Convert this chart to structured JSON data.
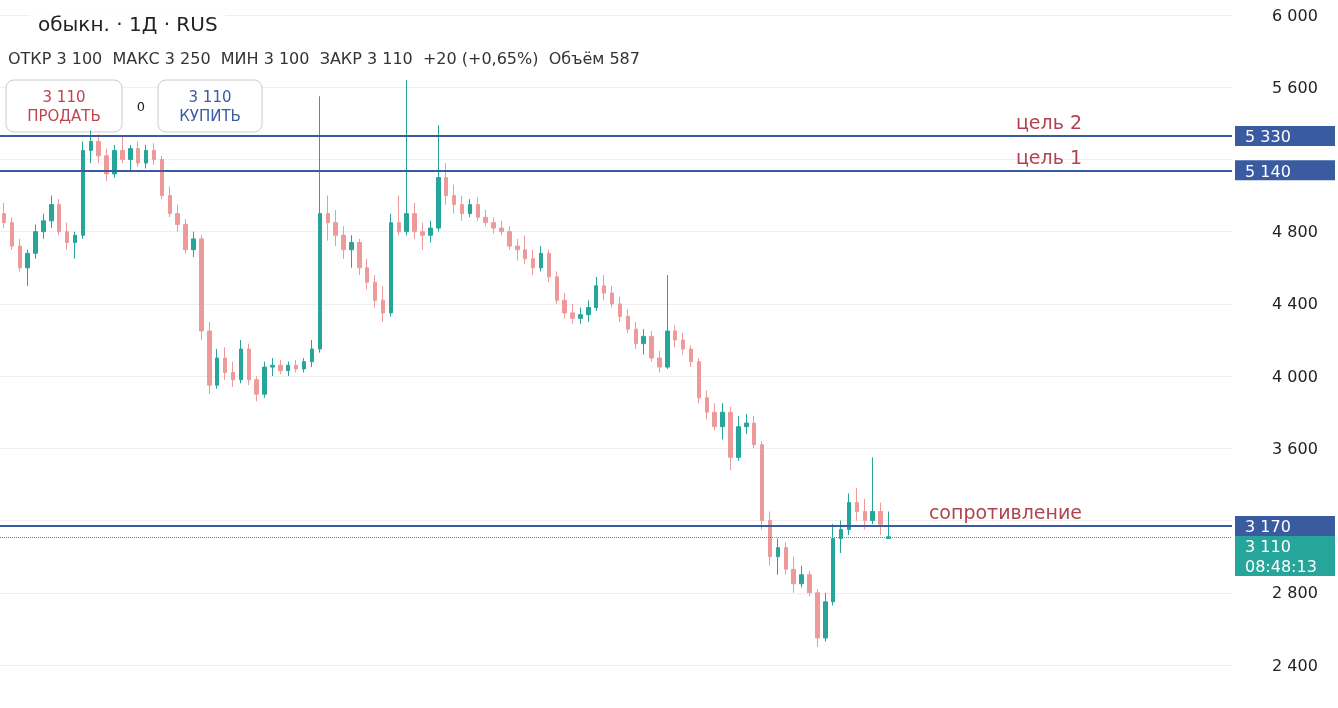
{
  "chart_data": {
    "type": "candlestick",
    "title": "обыкн. · 1Д · RUS",
    "subtitle": "ОТКР 3 100  МАКС 3 250  МИН 3 100  ЗАКР 3 110  +20 (+0,65%)  Объём 587",
    "annotations": [
      "3 110\nПРОДАТЬ",
      "0",
      "3 110\nКУПИТЬ",
      "5 330",
      "5 140",
      "3 170",
      "3 110",
      "08:48:13"
    ],
    "categories": [
      null,
      null,
      null,
      null,
      null,
      null,
      null,
      null,
      null,
      null,
      null,
      null,
      null,
      null,
      null,
      null,
      null,
      null,
      null,
      null,
      null,
      null,
      null,
      null,
      null,
      null,
      null,
      null,
      null,
      null,
      null,
      null,
      null,
      null,
      null,
      null,
      null,
      null,
      null,
      null,
      null,
      null,
      null,
      null,
      null,
      null,
      null,
      null,
      null,
      null,
      null,
      null,
      null,
      null,
      null,
      null,
      null,
      null,
      null,
      null,
      null,
      null,
      null,
      null,
      null,
      null,
      null,
      null,
      null,
      null,
      null,
      null,
      null,
      null,
      null,
      null,
      null,
      null,
      null,
      null,
      null,
      null,
      null,
      null,
      null,
      null,
      null,
      null,
      null,
      null,
      null,
      null,
      null,
      null,
      null,
      null,
      null,
      null,
      null,
      null,
      null,
      null,
      null,
      null,
      null,
      null,
      null,
      null,
      null,
      null,
      null,
      null,
      null,
      null,
      null,
      null,
      null,
      null,
      null,
      null,
      null,
      null,
      null,
      null,
      null,
      null,
      null,
      null,
      null,
      null,
      null,
      null,
      null,
      null,
      null,
      null,
      null,
      null,
      null,
      null,
      null,
      null,
      null,
      null,
      null,
      null,
      null,
      null,
      null,
      null,
      null,
      null,
      null,
      null,
      null,
      null
    ],
    "ohlc": [
      [
        4900,
        4960,
        4820,
        4850
      ],
      [
        4850,
        4880,
        4700,
        4720
      ],
      [
        4720,
        4760,
        4580,
        4600
      ],
      [
        4600,
        4700,
        4500,
        4680
      ],
      [
        4680,
        4840,
        4650,
        4800
      ],
      [
        4800,
        4900,
        4760,
        4860
      ],
      [
        4860,
        5000,
        4820,
        4950
      ],
      [
        4950,
        4980,
        4780,
        4800
      ],
      [
        4800,
        4850,
        4700,
        4740
      ],
      [
        4740,
        4800,
        4650,
        4780
      ],
      [
        4780,
        5300,
        4760,
        5250
      ],
      [
        5250,
        5360,
        5180,
        5300
      ],
      [
        5300,
        5340,
        5180,
        5220
      ],
      [
        5220,
        5260,
        5080,
        5120
      ],
      [
        5120,
        5280,
        5100,
        5250
      ],
      [
        5250,
        5330,
        5180,
        5200
      ],
      [
        5200,
        5280,
        5140,
        5260
      ],
      [
        5260,
        5300,
        5160,
        5180
      ],
      [
        5180,
        5280,
        5150,
        5250
      ],
      [
        5250,
        5290,
        5170,
        5200
      ],
      [
        5200,
        5220,
        4980,
        5000
      ],
      [
        5000,
        5050,
        4880,
        4900
      ],
      [
        4900,
        4950,
        4800,
        4840
      ],
      [
        4840,
        4870,
        4680,
        4700
      ],
      [
        4700,
        4800,
        4660,
        4760
      ],
      [
        4760,
        4780,
        4200,
        4250
      ],
      [
        4250,
        4300,
        3900,
        3950
      ],
      [
        3950,
        4150,
        3930,
        4100
      ],
      [
        4100,
        4160,
        3980,
        4020
      ],
      [
        4020,
        4080,
        3940,
        3980
      ],
      [
        3980,
        4200,
        3960,
        4150
      ],
      [
        4150,
        4180,
        3950,
        3980
      ],
      [
        3980,
        4000,
        3860,
        3900
      ],
      [
        3900,
        4080,
        3880,
        4050
      ],
      [
        4050,
        4100,
        4000,
        4060
      ],
      [
        4060,
        4090,
        4010,
        4030
      ],
      [
        4030,
        4080,
        4000,
        4060
      ],
      [
        4060,
        4090,
        4020,
        4040
      ],
      [
        4040,
        4100,
        4020,
        4080
      ],
      [
        4080,
        4200,
        4050,
        4150
      ],
      [
        4150,
        5550,
        4130,
        4900
      ],
      [
        4900,
        5000,
        4750,
        4850
      ],
      [
        4850,
        4920,
        4720,
        4780
      ],
      [
        4780,
        4830,
        4650,
        4700
      ],
      [
        4700,
        4780,
        4600,
        4740
      ],
      [
        4740,
        4760,
        4560,
        4600
      ],
      [
        4600,
        4650,
        4480,
        4520
      ],
      [
        4520,
        4560,
        4380,
        4420
      ],
      [
        4420,
        4500,
        4300,
        4350
      ],
      [
        4350,
        4900,
        4330,
        4850
      ],
      [
        4850,
        5000,
        4780,
        4800
      ],
      [
        4800,
        5640,
        4780,
        4900
      ],
      [
        4900,
        4960,
        4760,
        4800
      ],
      [
        4800,
        4850,
        4700,
        4780
      ],
      [
        4780,
        4860,
        4740,
        4820
      ],
      [
        4820,
        5390,
        4800,
        5100
      ],
      [
        5100,
        5180,
        4950,
        5000
      ],
      [
        5000,
        5060,
        4900,
        4950
      ],
      [
        4950,
        5000,
        4860,
        4900
      ],
      [
        4900,
        4980,
        4880,
        4950
      ],
      [
        4950,
        4990,
        4860,
        4880
      ],
      [
        4880,
        4920,
        4830,
        4850
      ],
      [
        4850,
        4880,
        4790,
        4820
      ],
      [
        4820,
        4860,
        4780,
        4800
      ],
      [
        4800,
        4830,
        4700,
        4720
      ],
      [
        4720,
        4760,
        4640,
        4700
      ],
      [
        4700,
        4780,
        4620,
        4650
      ],
      [
        4650,
        4700,
        4560,
        4600
      ],
      [
        4600,
        4720,
        4580,
        4680
      ],
      [
        4680,
        4700,
        4520,
        4550
      ],
      [
        4550,
        4580,
        4400,
        4420
      ],
      [
        4420,
        4460,
        4320,
        4350
      ],
      [
        4350,
        4400,
        4290,
        4320
      ],
      [
        4320,
        4380,
        4290,
        4340
      ],
      [
        4340,
        4420,
        4300,
        4380
      ],
      [
        4380,
        4550,
        4360,
        4500
      ],
      [
        4500,
        4560,
        4420,
        4460
      ],
      [
        4460,
        4500,
        4380,
        4400
      ],
      [
        4400,
        4440,
        4300,
        4330
      ],
      [
        4330,
        4370,
        4240,
        4260
      ],
      [
        4260,
        4300,
        4150,
        4180
      ],
      [
        4180,
        4260,
        4120,
        4220
      ],
      [
        4220,
        4250,
        4080,
        4100
      ],
      [
        4100,
        4140,
        4020,
        4050
      ],
      [
        4050,
        4560,
        4040,
        4250
      ],
      [
        4250,
        4280,
        4160,
        4200
      ],
      [
        4200,
        4240,
        4120,
        4150
      ],
      [
        4150,
        4170,
        4050,
        4080
      ],
      [
        4080,
        4100,
        3850,
        3880
      ],
      [
        3880,
        3920,
        3760,
        3800
      ],
      [
        3800,
        3850,
        3700,
        3720
      ],
      [
        3720,
        3850,
        3650,
        3800
      ],
      [
        3800,
        3830,
        3480,
        3550
      ],
      [
        3550,
        3780,
        3530,
        3720
      ],
      [
        3720,
        3790,
        3680,
        3740
      ],
      [
        3740,
        3780,
        3600,
        3620
      ],
      [
        3620,
        3640,
        3150,
        3200
      ],
      [
        3200,
        3250,
        2950,
        3000
      ],
      [
        3000,
        3100,
        2900,
        3050
      ],
      [
        3050,
        3080,
        2900,
        2930
      ],
      [
        2930,
        3000,
        2800,
        2850
      ],
      [
        2850,
        2950,
        2830,
        2900
      ],
      [
        2900,
        2920,
        2780,
        2800
      ],
      [
        2800,
        2820,
        2500,
        2550
      ],
      [
        2550,
        2800,
        2530,
        2750
      ],
      [
        2750,
        3180,
        2730,
        3100
      ],
      [
        3100,
        3200,
        3020,
        3150
      ],
      [
        3150,
        3350,
        3120,
        3300
      ],
      [
        3300,
        3380,
        3200,
        3250
      ],
      [
        3250,
        3320,
        3150,
        3200
      ],
      [
        3200,
        3550,
        3180,
        3250
      ],
      [
        3250,
        3300,
        3120,
        3180
      ],
      [
        3100,
        3250,
        3100,
        3110
      ],
      null,
      null,
      null,
      null,
      null,
      null,
      null,
      null,
      null,
      null,
      null,
      null,
      null,
      null,
      null,
      null,
      null,
      null,
      null,
      null,
      null,
      null,
      null,
      null,
      null,
      null,
      null,
      null,
      null,
      null,
      null,
      null,
      null,
      null,
      null,
      null,
      null,
      null,
      null,
      null,
      null,
      null,
      null
    ],
    "colors": [
      "#ef9a9a",
      "#ef9a9a",
      "#ef9a9a",
      "#26a69a",
      "#26a69a",
      "#26a69a",
      "#26a69a",
      "#ef9a9a",
      "#ef9a9a",
      "#26a69a",
      "#26a69a",
      "#26a69a",
      "#ef9a9a",
      "#ef9a9a",
      "#26a69a",
      "#ef9a9a",
      "#26a69a",
      "#ef9a9a",
      "#26a69a",
      "#ef9a9a",
      "#ef9a9a",
      "#ef9a9a",
      "#ef9a9a",
      "#ef9a9a",
      "#26a69a",
      "#ef9a9a",
      "#ef9a9a",
      "#26a69a",
      "#ef9a9a",
      "#ef9a9a",
      "#26a69a",
      "#ef9a9a",
      "#ef9a9a",
      "#26a69a",
      "#26a69a",
      "#ef9a9a",
      "#26a69a",
      "#ef9a9a",
      "#26a69a",
      "#26a69a",
      "#26a69a",
      "#ef9a9a",
      "#ef9a9a",
      "#ef9a9a",
      "#26a69a",
      "#ef9a9a",
      "#ef9a9a",
      "#ef9a9a",
      "#ef9a9a",
      "#26a69a",
      "#ef9a9a",
      "#26a69a",
      "#ef9a9a",
      "#ef9a9a",
      "#26a69a",
      "#26a69a",
      "#ef9a9a",
      "#ef9a9a",
      "#ef9a9a",
      "#26a69a",
      "#ef9a9a",
      "#ef9a9a",
      "#ef9a9a",
      "#ef9a9a",
      "#ef9a9a",
      "#ef9a9a",
      "#ef9a9a",
      "#ef9a9a",
      "#26a69a",
      "#ef9a9a",
      "#ef9a9a",
      "#ef9a9a",
      "#ef9a9a",
      "#26a69a",
      "#26a69a",
      "#26a69a",
      "#ef9a9a",
      "#ef9a9a",
      "#ef9a9a",
      "#ef9a9a",
      "#ef9a9a",
      "#26a69a",
      "#ef9a9a",
      "#ef9a9a",
      "#26a69a",
      "#ef9a9a",
      "#ef9a9a",
      "#ef9a9a",
      "#ef9a9a",
      "#ef9a9a",
      "#ef9a9a",
      "#26a69a",
      "#ef9a9a",
      "#26a69a",
      "#26a69a",
      "#ef9a9a",
      "#ef9a9a",
      "#ef9a9a",
      "#26a69a",
      "#ef9a9a",
      "#ef9a9a",
      "#26a69a",
      "#ef9a9a",
      "#ef9a9a",
      "#26a69a",
      "#26a69a",
      "#26a69a",
      "#26a69a",
      "#ef9a9a",
      "#ef9a9a",
      "#26a69a",
      "#ef9a9a",
      "#26a69a",
      null,
      null,
      null,
      null,
      null,
      null,
      null,
      null,
      null,
      null,
      null,
      null,
      null,
      null,
      null,
      null,
      null,
      null,
      null,
      null,
      null,
      null,
      null,
      null,
      null,
      null,
      null,
      null,
      null,
      null,
      null,
      null,
      null,
      null,
      null,
      null,
      null,
      null,
      null,
      null,
      null,
      null,
      null
    ],
    "ylim": [
      2400,
      6000
    ],
    "yticks": [
      {
        "value": 2400,
        "label": "2 400"
      },
      {
        "value": 2800,
        "label": "2 800"
      },
      {
        "value": 3200,
        "label": null
      },
      {
        "value": 3600,
        "label": "3 600"
      },
      {
        "value": 4000,
        "label": "4 000"
      },
      {
        "value": 4400,
        "label": "4 400"
      },
      {
        "value": 4800,
        "label": "4 800"
      },
      {
        "value": 5200,
        "label": null
      },
      {
        "value": 5600,
        "label": "5 600"
      },
      {
        "value": 6000,
        "label": "6 000"
      }
    ],
    "grid": "y",
    "ref_lines": [
      {
        "axis": "y",
        "value": 5330,
        "label": "цель 2",
        "color": "#3a5ba0"
      },
      {
        "axis": "y",
        "value": 5140,
        "label": "цель 1",
        "color": "#3a5ba0"
      },
      {
        "axis": "y",
        "value": 3170,
        "label": "сопротивление",
        "color": "#3a5ba0"
      },
      {
        "axis": "y",
        "value": 3110,
        "color": "#26a69a",
        "line_style": "dotted"
      }
    ]
  }
}
